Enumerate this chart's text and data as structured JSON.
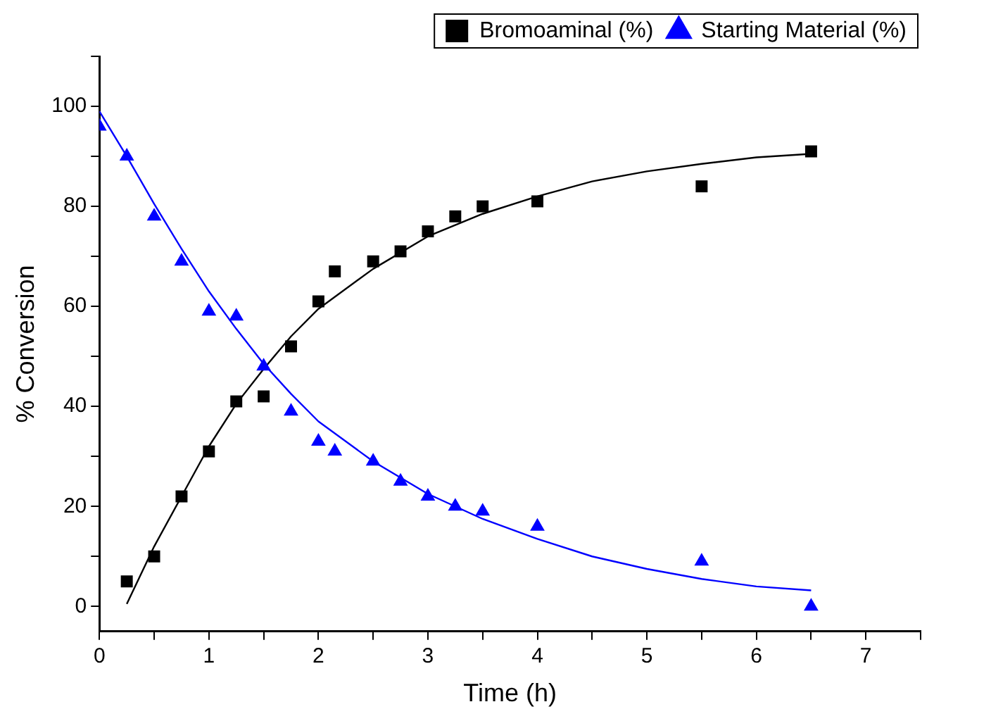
{
  "chart_data": {
    "type": "scatter",
    "xlabel": "Time (h)",
    "ylabel": "% Conversion",
    "xlim": [
      0,
      7.5
    ],
    "ylim": [
      -5,
      110
    ],
    "xticks": [
      0,
      {
        "value": 0.5,
        "label": null
      },
      1,
      {
        "value": 1.5,
        "label": null
      },
      2,
      {
        "value": 2.5,
        "label": null
      },
      3,
      {
        "value": 3.5,
        "label": null
      },
      4,
      {
        "value": 4.5,
        "label": null
      },
      5,
      {
        "value": 5.5,
        "label": null
      },
      6,
      {
        "value": 6.5,
        "label": null
      },
      7,
      {
        "value": 7.5,
        "label": null
      }
    ],
    "yticks": [
      0,
      {
        "value": 10,
        "label": null
      },
      20,
      {
        "value": 30,
        "label": null
      },
      40,
      {
        "value": 50,
        "label": null
      },
      60,
      {
        "value": 70,
        "label": null
      },
      80,
      {
        "value": 90,
        "label": null
      },
      100,
      {
        "value": 110,
        "label": null
      }
    ],
    "grid": false,
    "legend": "top right",
    "series": [
      {
        "name": "Bromoaminal (%)",
        "color": "#000000",
        "marker": "square",
        "x": [
          0.25,
          0.5,
          0.75,
          1,
          1.25,
          1.5,
          1.75,
          2,
          2.15,
          2.5,
          2.75,
          3,
          3.25,
          3.5,
          4,
          5.5,
          6.5
        ],
        "values": [
          5,
          10,
          22,
          31,
          41,
          42,
          52,
          61,
          67,
          69,
          71,
          75,
          78,
          80,
          81,
          84,
          91
        ]
      },
      {
        "name": "Starting Material (%)",
        "color": "#0000ff",
        "marker": "triangle",
        "x": [
          0,
          0.25,
          0.5,
          0.75,
          1,
          1.25,
          1.5,
          1.75,
          2,
          2.15,
          2.5,
          2.75,
          3,
          3.25,
          3.5,
          4,
          5.5,
          6.5
        ],
        "values": [
          96,
          90,
          78,
          69,
          59,
          58,
          48,
          39,
          33,
          31,
          29,
          25,
          22,
          20,
          19,
          16,
          9,
          0
        ]
      },
      {
        "type": "line",
        "color": "#000000",
        "marker": "none",
        "x": [
          0.25,
          0.5,
          0.75,
          1,
          1.25,
          1.5,
          1.75,
          2,
          2.5,
          3,
          3.5,
          4,
          4.5,
          5,
          5.5,
          6,
          6.5
        ],
        "values": [
          0.5,
          12,
          22,
          32,
          40.5,
          47.5,
          54,
          59.5,
          67.5,
          74,
          78.5,
          82,
          85,
          87,
          88.5,
          89.8,
          90.5
        ]
      },
      {
        "type": "line",
        "color": "#0000ff",
        "marker": "none",
        "x": [
          0,
          0.25,
          0.5,
          0.75,
          1,
          1.25,
          1.5,
          1.75,
          2,
          2.5,
          3,
          3.5,
          4,
          4.5,
          5,
          5.5,
          6,
          6.5
        ],
        "values": [
          99,
          90,
          80.5,
          71.5,
          63,
          55.5,
          48.5,
          42.5,
          37,
          29,
          22.5,
          17.5,
          13.5,
          10,
          7.5,
          5.5,
          4,
          3.2
        ]
      }
    ]
  }
}
